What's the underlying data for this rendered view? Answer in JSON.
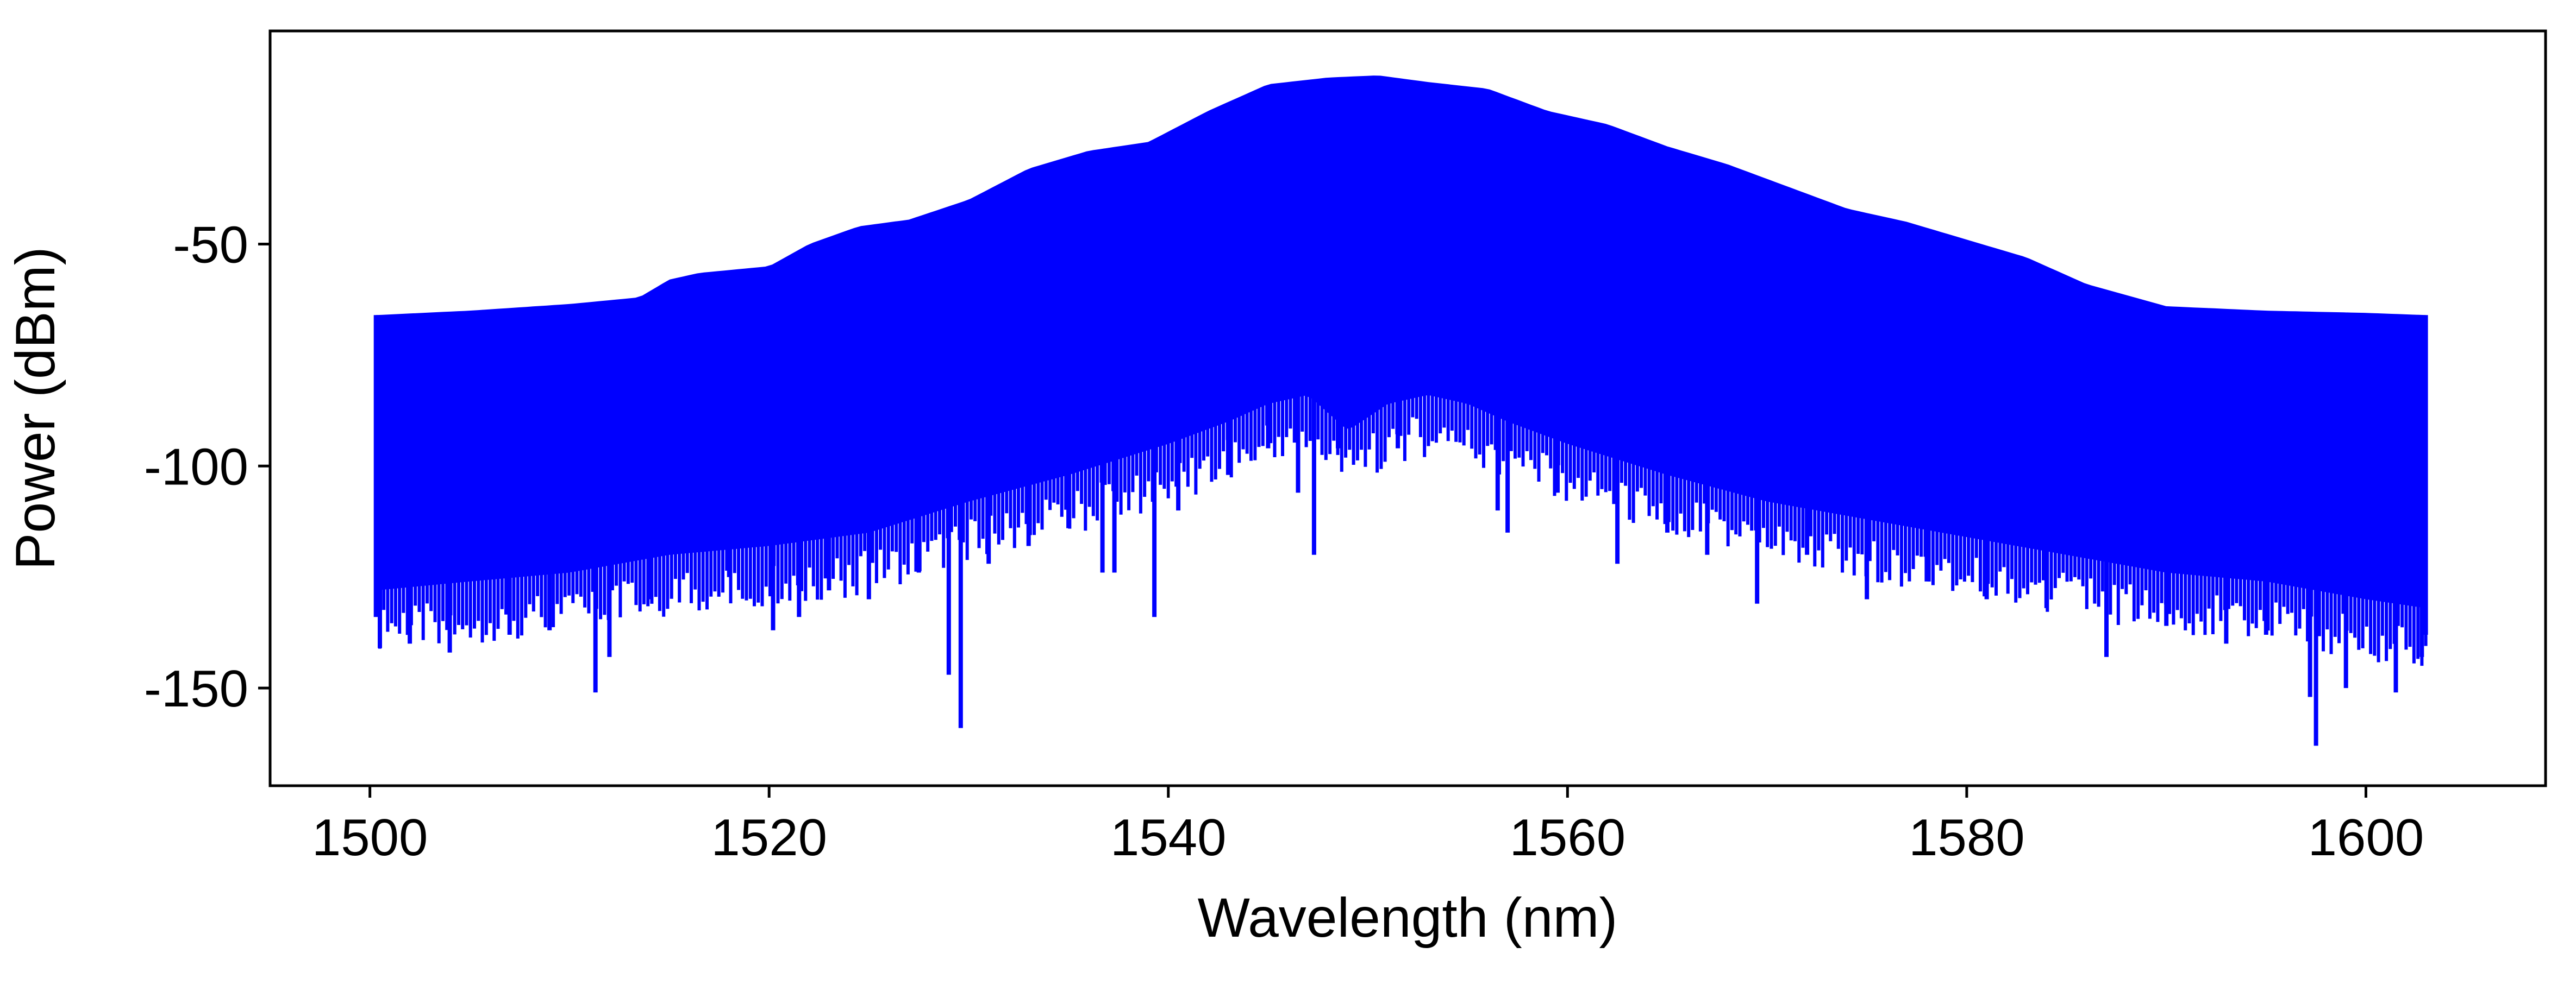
{
  "chart_data": {
    "type": "line",
    "title": "",
    "xlabel": "Wavelength (nm)",
    "ylabel": "Power (dBm)",
    "xlim": [
      1495,
      1609
    ],
    "ylim": [
      -172,
      -2
    ],
    "grid": false,
    "legend": "none",
    "series_color": "#0000ff",
    "x_ticks": [
      {
        "value": 1500,
        "label": "1500"
      },
      {
        "value": 1520,
        "label": "1520"
      },
      {
        "value": 1540,
        "label": "1540"
      },
      {
        "value": 1560,
        "label": "1560"
      },
      {
        "value": 1580,
        "label": "1580"
      },
      {
        "value": 1600,
        "label": "1600"
      }
    ],
    "y_ticks": [
      {
        "value": -50,
        "label": "-50"
      },
      {
        "value": -100,
        "label": "-100"
      },
      {
        "value": -150,
        "label": "-150"
      }
    ],
    "upper_envelope": {
      "x": [
        1500.3,
        1505,
        1510,
        1513.5,
        1515,
        1516.5,
        1520,
        1522,
        1524.5,
        1527,
        1530,
        1533,
        1536,
        1539,
        1542,
        1545,
        1548,
        1550.5,
        1553,
        1556,
        1559,
        1562,
        1565,
        1568,
        1571,
        1574,
        1577,
        1580,
        1583,
        1586,
        1590,
        1595,
        1600,
        1603
      ],
      "y": [
        -66,
        -65,
        -63.5,
        -62,
        -58,
        -56.5,
        -55,
        -50,
        -46,
        -44.5,
        -40,
        -33,
        -29,
        -27,
        -20,
        -14,
        -12.5,
        -12,
        -13.5,
        -15,
        -20,
        -23,
        -28,
        -32,
        -37,
        -42,
        -45,
        -49,
        -53,
        -59,
        -64,
        -65,
        -65.5,
        -66
      ]
    },
    "lower_envelope": {
      "x": [
        1500.3,
        1505,
        1510,
        1515,
        1520,
        1525,
        1530,
        1535,
        1540,
        1543,
        1545,
        1547,
        1549,
        1551,
        1553,
        1555,
        1557,
        1560,
        1565,
        1570,
        1575,
        1580,
        1585,
        1590,
        1595,
        1600,
        1603
      ],
      "y": [
        -128,
        -126,
        -124,
        -120,
        -118,
        -115,
        -108,
        -102,
        -95,
        -90,
        -86,
        -84,
        -92,
        -86,
        -84,
        -86,
        -90,
        -95,
        -102,
        -108,
        -112,
        -116,
        -120,
        -124,
        -126,
        -130,
        -132
      ]
    },
    "dips": [
      {
        "x": 1500.5,
        "y": -141
      },
      {
        "x": 1502,
        "y": -140
      },
      {
        "x": 1504,
        "y": -142
      },
      {
        "x": 1507,
        "y": -138
      },
      {
        "x": 1509,
        "y": -137
      },
      {
        "x": 1511.3,
        "y": -151
      },
      {
        "x": 1512,
        "y": -143
      },
      {
        "x": 1514,
        "y": -130
      },
      {
        "x": 1518,
        "y": -125
      },
      {
        "x": 1520.2,
        "y": -137
      },
      {
        "x": 1521.5,
        "y": -134
      },
      {
        "x": 1523,
        "y": -128
      },
      {
        "x": 1525,
        "y": -130
      },
      {
        "x": 1527.5,
        "y": -124
      },
      {
        "x": 1529,
        "y": -147
      },
      {
        "x": 1529.6,
        "y": -159
      },
      {
        "x": 1531,
        "y": -122
      },
      {
        "x": 1533,
        "y": -118
      },
      {
        "x": 1535,
        "y": -114
      },
      {
        "x": 1536.7,
        "y": -124
      },
      {
        "x": 1537.3,
        "y": -124
      },
      {
        "x": 1539.3,
        "y": -134
      },
      {
        "x": 1540.5,
        "y": -110
      },
      {
        "x": 1543,
        "y": -102
      },
      {
        "x": 1545,
        "y": -96
      },
      {
        "x": 1546.5,
        "y": -106
      },
      {
        "x": 1547.3,
        "y": -120
      },
      {
        "x": 1548.5,
        "y": -96
      },
      {
        "x": 1551.5,
        "y": -96
      },
      {
        "x": 1556.5,
        "y": -110
      },
      {
        "x": 1557,
        "y": -115
      },
      {
        "x": 1559.5,
        "y": -106
      },
      {
        "x": 1562.5,
        "y": -122
      },
      {
        "x": 1565,
        "y": -115
      },
      {
        "x": 1567,
        "y": -120
      },
      {
        "x": 1569.5,
        "y": -131
      },
      {
        "x": 1572,
        "y": -120
      },
      {
        "x": 1575,
        "y": -130
      },
      {
        "x": 1578,
        "y": -126
      },
      {
        "x": 1581,
        "y": -130
      },
      {
        "x": 1584,
        "y": -132
      },
      {
        "x": 1587,
        "y": -143
      },
      {
        "x": 1590,
        "y": -136
      },
      {
        "x": 1593,
        "y": -140
      },
      {
        "x": 1595,
        "y": -138
      },
      {
        "x": 1597.2,
        "y": -152
      },
      {
        "x": 1597.5,
        "y": -163
      },
      {
        "x": 1599,
        "y": -150
      },
      {
        "x": 1601.5,
        "y": -151
      },
      {
        "x": 1602.8,
        "y": -143
      }
    ]
  }
}
